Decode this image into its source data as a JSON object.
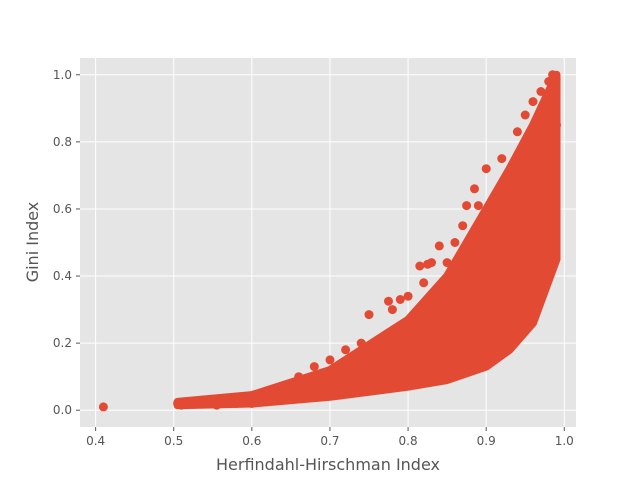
{
  "chart_data": {
    "type": "scatter",
    "title": "",
    "xlabel": "Herfindahl-Hirschman Index",
    "ylabel": "Gini Index",
    "xlim": [
      0.38,
      1.015
    ],
    "ylim": [
      -0.05,
      1.05
    ],
    "grid": true,
    "legend": "none",
    "marker_color": "#E24A33",
    "background_color": "#E5E5E5",
    "grid_color": "#FFFFFF",
    "x_ticks": [
      {
        "value": 0.4,
        "label": "0.4"
      },
      {
        "value": 0.5,
        "label": "0.5"
      },
      {
        "value": 0.6,
        "label": "0.6"
      },
      {
        "value": 0.7,
        "label": "0.7"
      },
      {
        "value": 0.8,
        "label": "0.8"
      },
      {
        "value": 0.9,
        "label": "0.9"
      },
      {
        "value": 1.0,
        "label": "1.0"
      }
    ],
    "y_ticks": [
      {
        "value": 0.0,
        "label": "0.0"
      },
      {
        "value": 0.2,
        "label": "0.2"
      },
      {
        "value": 0.4,
        "label": "0.4"
      },
      {
        "value": 0.6,
        "label": "0.6"
      },
      {
        "value": 0.8,
        "label": "0.8"
      },
      {
        "value": 1.0,
        "label": "1.0"
      }
    ],
    "points": [
      [
        0.41,
        0.01
      ],
      [
        0.505,
        0.02
      ],
      [
        0.51,
        0.015
      ],
      [
        0.515,
        0.02
      ],
      [
        0.53,
        0.025
      ],
      [
        0.54,
        0.02
      ],
      [
        0.55,
        0.03
      ],
      [
        0.555,
        0.015
      ],
      [
        0.56,
        0.025
      ],
      [
        0.57,
        0.035
      ],
      [
        0.58,
        0.03
      ],
      [
        0.59,
        0.04
      ],
      [
        0.6,
        0.035
      ],
      [
        0.61,
        0.045
      ],
      [
        0.62,
        0.04
      ],
      [
        0.63,
        0.06
      ],
      [
        0.64,
        0.05
      ],
      [
        0.65,
        0.08
      ],
      [
        0.66,
        0.1
      ],
      [
        0.67,
        0.07
      ],
      [
        0.68,
        0.13
      ],
      [
        0.69,
        0.09
      ],
      [
        0.7,
        0.15
      ],
      [
        0.71,
        0.12
      ],
      [
        0.72,
        0.18
      ],
      [
        0.73,
        0.14
      ],
      [
        0.74,
        0.2
      ],
      [
        0.75,
        0.285
      ],
      [
        0.76,
        0.16
      ],
      [
        0.77,
        0.22
      ],
      [
        0.775,
        0.325
      ],
      [
        0.78,
        0.3
      ],
      [
        0.79,
        0.33
      ],
      [
        0.8,
        0.34
      ],
      [
        0.81,
        0.29
      ],
      [
        0.815,
        0.43
      ],
      [
        0.82,
        0.38
      ],
      [
        0.825,
        0.435
      ],
      [
        0.83,
        0.44
      ],
      [
        0.84,
        0.49
      ],
      [
        0.85,
        0.44
      ],
      [
        0.86,
        0.5
      ],
      [
        0.87,
        0.55
      ],
      [
        0.875,
        0.61
      ],
      [
        0.885,
        0.66
      ],
      [
        0.89,
        0.61
      ],
      [
        0.9,
        0.72
      ],
      [
        0.91,
        0.55
      ],
      [
        0.92,
        0.75
      ],
      [
        0.93,
        0.7
      ],
      [
        0.94,
        0.83
      ],
      [
        0.95,
        0.88
      ],
      [
        0.96,
        0.92
      ],
      [
        0.97,
        0.95
      ],
      [
        0.98,
        0.98
      ],
      [
        0.985,
        1.0
      ],
      [
        0.58,
        0.02
      ],
      [
        0.6,
        0.02
      ],
      [
        0.62,
        0.025
      ],
      [
        0.64,
        0.03
      ],
      [
        0.66,
        0.035
      ],
      [
        0.68,
        0.04
      ],
      [
        0.7,
        0.045
      ],
      [
        0.72,
        0.05
      ],
      [
        0.74,
        0.06
      ],
      [
        0.76,
        0.065
      ],
      [
        0.78,
        0.07
      ],
      [
        0.8,
        0.08
      ],
      [
        0.82,
        0.085
      ],
      [
        0.84,
        0.1
      ],
      [
        0.86,
        0.12
      ],
      [
        0.88,
        0.14
      ],
      [
        0.9,
        0.17
      ],
      [
        0.92,
        0.2
      ],
      [
        0.94,
        0.24
      ],
      [
        0.96,
        0.3
      ],
      [
        0.66,
        0.05
      ],
      [
        0.68,
        0.06
      ],
      [
        0.7,
        0.07
      ],
      [
        0.72,
        0.08
      ],
      [
        0.74,
        0.1
      ],
      [
        0.76,
        0.11
      ],
      [
        0.78,
        0.13
      ],
      [
        0.8,
        0.15
      ],
      [
        0.82,
        0.17
      ],
      [
        0.84,
        0.2
      ],
      [
        0.86,
        0.22
      ],
      [
        0.88,
        0.25
      ],
      [
        0.9,
        0.28
      ],
      [
        0.92,
        0.32
      ],
      [
        0.94,
        0.36
      ],
      [
        0.96,
        0.42
      ],
      [
        0.98,
        0.5
      ],
      [
        0.7,
        0.1
      ],
      [
        0.72,
        0.12
      ],
      [
        0.74,
        0.14
      ],
      [
        0.76,
        0.16
      ],
      [
        0.78,
        0.18
      ],
      [
        0.8,
        0.2
      ],
      [
        0.82,
        0.23
      ],
      [
        0.84,
        0.26
      ],
      [
        0.86,
        0.3
      ],
      [
        0.88,
        0.34
      ],
      [
        0.9,
        0.38
      ],
      [
        0.92,
        0.43
      ],
      [
        0.94,
        0.5
      ],
      [
        0.96,
        0.58
      ],
      [
        0.98,
        0.7
      ],
      [
        0.8,
        0.25
      ],
      [
        0.82,
        0.28
      ],
      [
        0.84,
        0.32
      ],
      [
        0.86,
        0.37
      ],
      [
        0.88,
        0.42
      ],
      [
        0.9,
        0.47
      ],
      [
        0.92,
        0.53
      ],
      [
        0.94,
        0.6
      ],
      [
        0.96,
        0.68
      ],
      [
        0.98,
        0.8
      ],
      [
        0.86,
        0.4
      ],
      [
        0.88,
        0.47
      ],
      [
        0.9,
        0.55
      ],
      [
        0.92,
        0.62
      ],
      [
        0.94,
        0.7
      ],
      [
        0.96,
        0.78
      ],
      [
        0.98,
        0.88
      ],
      [
        0.93,
        0.22
      ],
      [
        0.95,
        0.3
      ],
      [
        0.965,
        0.35
      ],
      [
        0.97,
        0.4
      ],
      [
        0.975,
        0.5
      ],
      [
        0.98,
        0.6
      ],
      [
        0.985,
        0.7
      ],
      [
        0.99,
        0.85
      ]
    ],
    "bands": [
      {
        "x": [
          0.505,
          0.6
        ],
        "low": [
          0.015,
          0.02
        ],
        "high": [
          0.025,
          0.045
        ]
      },
      {
        "x": [
          0.6,
          0.7
        ],
        "low": [
          0.02,
          0.04
        ],
        "high": [
          0.045,
          0.12
        ]
      },
      {
        "x": [
          0.7,
          0.8
        ],
        "low": [
          0.04,
          0.07
        ],
        "high": [
          0.12,
          0.27
        ]
      },
      {
        "x": [
          0.8,
          0.85
        ],
        "low": [
          0.07,
          0.09
        ],
        "high": [
          0.27,
          0.4
        ]
      },
      {
        "x": [
          0.85,
          0.9
        ],
        "low": [
          0.09,
          0.13
        ],
        "high": [
          0.4,
          0.6
        ]
      },
      {
        "x": [
          0.9,
          0.93
        ],
        "low": [
          0.13,
          0.18
        ],
        "high": [
          0.6,
          0.72
        ]
      },
      {
        "x": [
          0.93,
          0.96
        ],
        "low": [
          0.18,
          0.26
        ],
        "high": [
          0.72,
          0.85
        ]
      },
      {
        "x": [
          0.96,
          0.99
        ],
        "low": [
          0.26,
          0.45
        ],
        "high": [
          0.85,
          1.0
        ]
      }
    ]
  }
}
